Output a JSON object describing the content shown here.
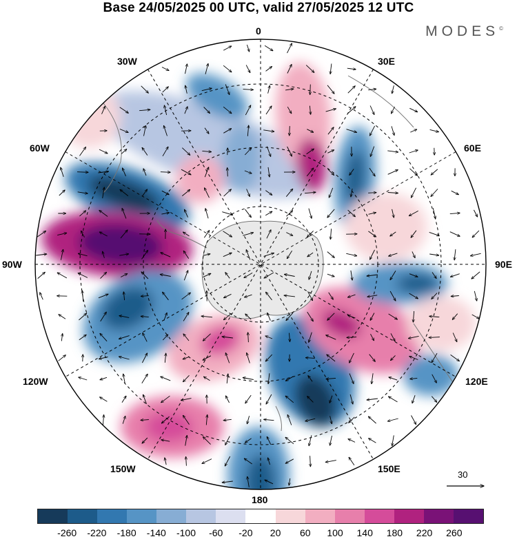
{
  "title": "Base 24/05/2025 00 UTC, valid 27/05/2025 12 UTC",
  "brand": "MODES",
  "brand_mark": "©",
  "longitude_labels": {
    "lon_0": "0",
    "lon_30e": "30E",
    "lon_60e": "60E",
    "lon_90e": "90E",
    "lon_120e": "120E",
    "lon_150e": "150E",
    "lon_180": "180",
    "lon_150w": "150W",
    "lon_120w": "120W",
    "lon_90w": "90W",
    "lon_60w": "60W",
    "lon_30w": "30W"
  },
  "reference_vector_label": "30",
  "colorbar": {
    "colors": [
      "#163a5a",
      "#1d5b8a",
      "#3278b0",
      "#5694c5",
      "#87add4",
      "#b7c6e2",
      "#dcdff0",
      "#ffffff",
      "#f7d7da",
      "#f2aec1",
      "#e77fab",
      "#d54c9a",
      "#b0227f",
      "#7a1277",
      "#571071"
    ],
    "tick_labels": [
      "-260",
      "-220",
      "-180",
      "-140",
      "-100",
      "-60",
      "-20",
      "20",
      "60",
      "100",
      "140",
      "180",
      "220",
      "260"
    ]
  }
}
